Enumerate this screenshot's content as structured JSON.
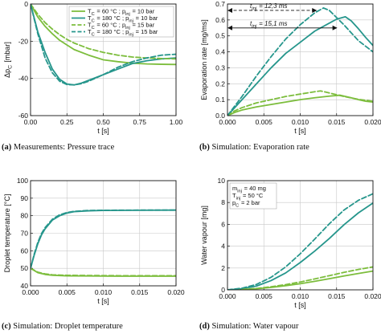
{
  "colors": {
    "light": "#7cbd3c",
    "dark": "#26968c"
  },
  "chart_data": [
    {
      "type": "line",
      "panel_letter": "(a)",
      "caption": "Measurements: Pressure trace",
      "xlabel": "t [s]",
      "ylabel": "Δp_C [mbar]",
      "xlim": [
        0,
        1
      ],
      "ylim": [
        -60,
        0
      ],
      "xticks": [
        0,
        0.25,
        0.5,
        0.75,
        1.0
      ],
      "xtick_labels": [
        "0.00",
        "0.25",
        "0.50",
        "0.75",
        "1.00"
      ],
      "yticks": [
        -60,
        -40,
        -20,
        0
      ],
      "ytick_labels": [
        "-60",
        "-40",
        "-20",
        "0"
      ],
      "grid": true,
      "legend": {
        "placement": "top-right",
        "entries": [
          {
            "text": "T_C = 60 °C ; p_inj = 10 bar",
            "series": 0
          },
          {
            "text": "T_C = 180 °C ; p_inj = 10 bar",
            "series": 1
          },
          {
            "text": "T_C = 60 °C ; p_inj = 15 bar",
            "series": 2
          },
          {
            "text": "T_C = 180 °C ; p_inj = 15 bar",
            "series": 3
          }
        ]
      },
      "series": [
        {
          "name": "T_C = 60 °C ; p_inj = 10 bar",
          "color": "light",
          "dash": false,
          "x": [
            0,
            0.05,
            0.1,
            0.15,
            0.2,
            0.25,
            0.3,
            0.4,
            0.5,
            0.6,
            0.7,
            0.8,
            0.9,
            1.0
          ],
          "y": [
            0,
            -7,
            -12,
            -16,
            -19.5,
            -22,
            -24.5,
            -27.5,
            -30,
            -31,
            -31.8,
            -32.2,
            -32.4,
            -32.5
          ]
        },
        {
          "name": "T_C = 180 °C ; p_inj = 10 bar",
          "color": "dark",
          "dash": false,
          "x": [
            0,
            0.05,
            0.1,
            0.15,
            0.2,
            0.25,
            0.3,
            0.35,
            0.4,
            0.5,
            0.6,
            0.7,
            0.8,
            0.9,
            1.0
          ],
          "y": [
            0,
            -15,
            -26,
            -35,
            -40.5,
            -43,
            -43.5,
            -42.5,
            -41,
            -38,
            -35,
            -32,
            -30.5,
            -29.5,
            -29
          ]
        },
        {
          "name": "T_C = 60 °C ; p_inj = 15 bar",
          "color": "light",
          "dash": true,
          "x": [
            0,
            0.05,
            0.1,
            0.15,
            0.2,
            0.25,
            0.3,
            0.4,
            0.5,
            0.6,
            0.7,
            0.8,
            0.9,
            1.0
          ],
          "y": [
            0,
            -5.5,
            -10,
            -13.5,
            -16.5,
            -19,
            -21,
            -24,
            -26,
            -27.5,
            -28.5,
            -29,
            -29.3,
            -29.5
          ]
        },
        {
          "name": "T_C = 180 °C ; p_inj = 15 bar",
          "color": "dark",
          "dash": true,
          "x": [
            0,
            0.05,
            0.1,
            0.15,
            0.2,
            0.25,
            0.3,
            0.35,
            0.4,
            0.5,
            0.6,
            0.7,
            0.8,
            0.9,
            1.0
          ],
          "y": [
            0,
            -16,
            -29,
            -37,
            -41.5,
            -43.3,
            -43.5,
            -42.8,
            -41.5,
            -38,
            -34,
            -31,
            -29,
            -27.5,
            -27
          ]
        }
      ]
    },
    {
      "type": "line",
      "panel_letter": "(b)",
      "caption": "Simulation: Evaporation rate",
      "xlabel": "t [s]",
      "ylabel": "Evaporation rate [mg/ms]",
      "xlim": [
        0,
        0.02
      ],
      "ylim": [
        0,
        0.7
      ],
      "xticks": [
        0,
        0.005,
        0.01,
        0.015,
        0.02
      ],
      "xtick_labels": [
        "0.000",
        "0.005",
        "0.010",
        "0.015",
        "0.020"
      ],
      "yticks": [
        0,
        0.1,
        0.2,
        0.3,
        0.4,
        0.5,
        0.6,
        0.7
      ],
      "ytick_labels": [
        "0.0",
        "0.1",
        "0.2",
        "0.3",
        "0.4",
        "0.5",
        "0.6",
        "0.7"
      ],
      "grid": true,
      "annotations": [
        {
          "text": "t_inj = 12,3 ms",
          "x_start": 0,
          "x_end": 0.0123,
          "y": 0.66,
          "style": "dashed-arrow"
        },
        {
          "text": "t_inj = 15,1 ms",
          "x_start": 0,
          "x_end": 0.0151,
          "y": 0.55,
          "style": "solid-arrow"
        }
      ],
      "series": [
        {
          "color": "light",
          "dash": false,
          "x": [
            0,
            0.001,
            0.002,
            0.004,
            0.006,
            0.008,
            0.01,
            0.012,
            0.014,
            0.0155,
            0.017,
            0.018,
            0.019,
            0.02
          ],
          "y": [
            0,
            0.02,
            0.035,
            0.055,
            0.07,
            0.085,
            0.1,
            0.112,
            0.122,
            0.128,
            0.112,
            0.1,
            0.09,
            0.085
          ]
        },
        {
          "color": "dark",
          "dash": false,
          "x": [
            0,
            0.001,
            0.002,
            0.004,
            0.006,
            0.008,
            0.01,
            0.012,
            0.014,
            0.015,
            0.0162,
            0.017,
            0.018,
            0.019,
            0.02
          ],
          "y": [
            0,
            0.05,
            0.1,
            0.2,
            0.3,
            0.39,
            0.46,
            0.53,
            0.58,
            0.605,
            0.62,
            0.595,
            0.545,
            0.49,
            0.44
          ]
        },
        {
          "color": "light",
          "dash": true,
          "x": [
            0,
            0.001,
            0.002,
            0.004,
            0.006,
            0.008,
            0.01,
            0.012,
            0.0128,
            0.014,
            0.016,
            0.018,
            0.02
          ],
          "y": [
            0,
            0.03,
            0.05,
            0.08,
            0.1,
            0.12,
            0.135,
            0.15,
            0.155,
            0.142,
            0.12,
            0.102,
            0.09
          ]
        },
        {
          "color": "dark",
          "dash": true,
          "x": [
            0,
            0.001,
            0.002,
            0.004,
            0.006,
            0.008,
            0.01,
            0.012,
            0.0132,
            0.014,
            0.015,
            0.016,
            0.018,
            0.02
          ],
          "y": [
            0,
            0.06,
            0.12,
            0.25,
            0.37,
            0.48,
            0.57,
            0.645,
            0.675,
            0.66,
            0.615,
            0.57,
            0.47,
            0.4
          ]
        }
      ]
    },
    {
      "type": "line",
      "panel_letter": "(c)",
      "caption": "Simulation: Droplet temperature",
      "xlabel": "t [s]",
      "ylabel": "Droplet temperature [°C]",
      "xlim": [
        0,
        0.02
      ],
      "ylim": [
        40,
        100
      ],
      "xticks": [
        0,
        0.005,
        0.01,
        0.015,
        0.02
      ],
      "xtick_labels": [
        "0.000",
        "0.005",
        "0.010",
        "0.015",
        "0.020"
      ],
      "yticks": [
        40,
        50,
        60,
        70,
        80,
        90,
        100
      ],
      "ytick_labels": [
        "40",
        "50",
        "60",
        "70",
        "80",
        "90",
        "100"
      ],
      "grid": true,
      "series": [
        {
          "color": "light",
          "dash": false,
          "x": [
            0,
            0.001,
            0.002,
            0.003,
            0.005,
            0.008,
            0.012,
            0.016,
            0.02
          ],
          "y": [
            50,
            47.5,
            46.5,
            46,
            45.7,
            45.6,
            45.5,
            45.5,
            45.5
          ]
        },
        {
          "color": "dark",
          "dash": false,
          "x": [
            0,
            0.0005,
            0.001,
            0.0015,
            0.002,
            0.003,
            0.004,
            0.005,
            0.006,
            0.008,
            0.01,
            0.015,
            0.02
          ],
          "y": [
            50,
            57.5,
            64,
            69,
            72.5,
            77.5,
            80,
            81.5,
            82.3,
            82.8,
            83,
            83.1,
            83.2
          ]
        },
        {
          "color": "light",
          "dash": true,
          "x": [
            0,
            0.001,
            0.002,
            0.003,
            0.005,
            0.008,
            0.012,
            0.016,
            0.02
          ],
          "y": [
            50,
            47.8,
            46.8,
            46.3,
            46,
            45.9,
            45.8,
            45.8,
            45.8
          ]
        },
        {
          "color": "dark",
          "dash": true,
          "x": [
            0,
            0.0005,
            0.001,
            0.0015,
            0.002,
            0.003,
            0.004,
            0.005,
            0.006,
            0.008,
            0.01,
            0.015,
            0.02
          ],
          "y": [
            50,
            58,
            64.8,
            69.8,
            73.2,
            78,
            80.5,
            81.8,
            82.5,
            83,
            83.1,
            83.2,
            83.2
          ]
        }
      ]
    },
    {
      "type": "line",
      "panel_letter": "(d)",
      "caption": "Simulation: Water vapour",
      "xlabel": "t [s]",
      "ylabel": "Water vapour [mg]",
      "xlim": [
        0,
        0.02
      ],
      "ylim": [
        0,
        10
      ],
      "xticks": [
        0,
        0.005,
        0.01,
        0.015,
        0.02
      ],
      "xtick_labels": [
        "0.000",
        "0.005",
        "0.010",
        "0.015",
        "0.020"
      ],
      "yticks": [
        0,
        2,
        4,
        6,
        8,
        10
      ],
      "ytick_labels": [
        "0",
        "2",
        "4",
        "6",
        "8",
        "10"
      ],
      "grid": true,
      "infobox": {
        "placement": "top-left",
        "lines": [
          "m_inj = 40 mg",
          "T_inj = 50 °C",
          "p_C =   2 bar"
        ]
      },
      "series": [
        {
          "color": "light",
          "dash": false,
          "x": [
            0,
            0.002,
            0.004,
            0.006,
            0.008,
            0.01,
            0.012,
            0.014,
            0.016,
            0.018,
            0.02
          ],
          "y": [
            0,
            0.03,
            0.1,
            0.22,
            0.38,
            0.56,
            0.78,
            1.02,
            1.27,
            1.5,
            1.72
          ]
        },
        {
          "color": "dark",
          "dash": false,
          "x": [
            0,
            0.002,
            0.004,
            0.006,
            0.008,
            0.01,
            0.012,
            0.014,
            0.016,
            0.018,
            0.02
          ],
          "y": [
            0,
            0.1,
            0.35,
            0.85,
            1.55,
            2.5,
            3.55,
            4.7,
            5.95,
            7.05,
            7.95
          ]
        },
        {
          "color": "light",
          "dash": true,
          "x": [
            0,
            0.002,
            0.004,
            0.006,
            0.008,
            0.01,
            0.012,
            0.014,
            0.016,
            0.018,
            0.02
          ],
          "y": [
            0,
            0.04,
            0.13,
            0.28,
            0.48,
            0.72,
            1.0,
            1.3,
            1.6,
            1.87,
            2.1
          ]
        },
        {
          "color": "dark",
          "dash": true,
          "x": [
            0,
            0.002,
            0.004,
            0.006,
            0.008,
            0.01,
            0.012,
            0.014,
            0.016,
            0.018,
            0.02
          ],
          "y": [
            0,
            0.15,
            0.5,
            1.15,
            2.1,
            3.3,
            4.65,
            6.05,
            7.3,
            8.2,
            8.8
          ]
        }
      ]
    }
  ]
}
